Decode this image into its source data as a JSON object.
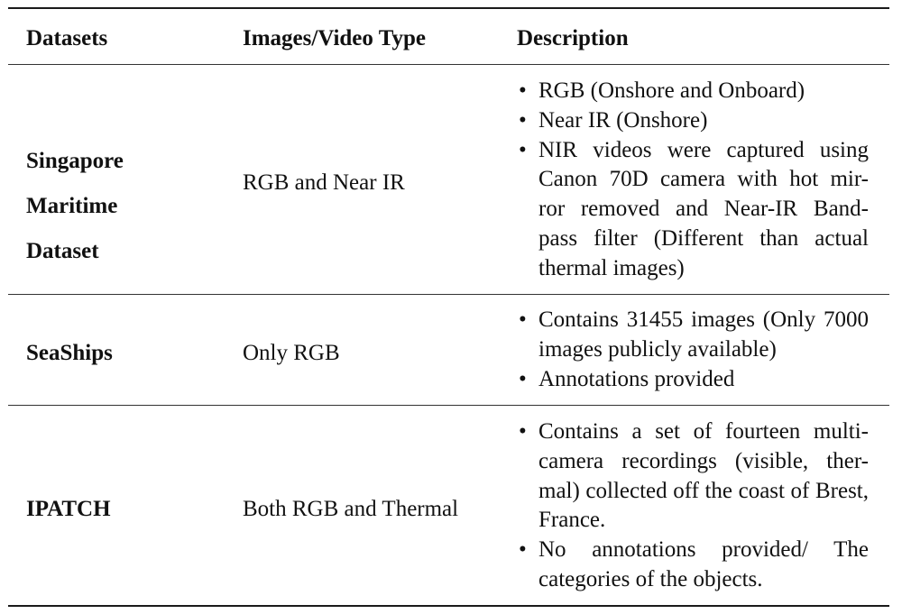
{
  "header": {
    "col1": "Datasets",
    "col2": "Images/Video Type",
    "col3": "Description"
  },
  "rows": [
    {
      "dataset_lines": [
        "Singapore",
        "Maritime",
        "Dataset"
      ],
      "type": "RGB and Near IR",
      "description": [
        "RGB (Onshore and Onboard)",
        "Near IR (Onshore)",
        "NIR videos were captured using Canon 70D camera with hot mir- ror removed and Near-IR Band- pass filter (Different than actual thermal images)"
      ]
    },
    {
      "dataset": "SeaShips",
      "type": "Only RGB",
      "description": [
        "Contains 31455 images (Only 7000 images publicly available)",
        "Annotations provided"
      ]
    },
    {
      "dataset": "IPATCH",
      "type": "Both RGB and Thermal",
      "description": [
        "Contains a set of fourteen multi- camera recordings (visible, ther- mal) collected off the coast of Brest, France.",
        "No annotations provided/ The categories of the objects."
      ]
    }
  ]
}
